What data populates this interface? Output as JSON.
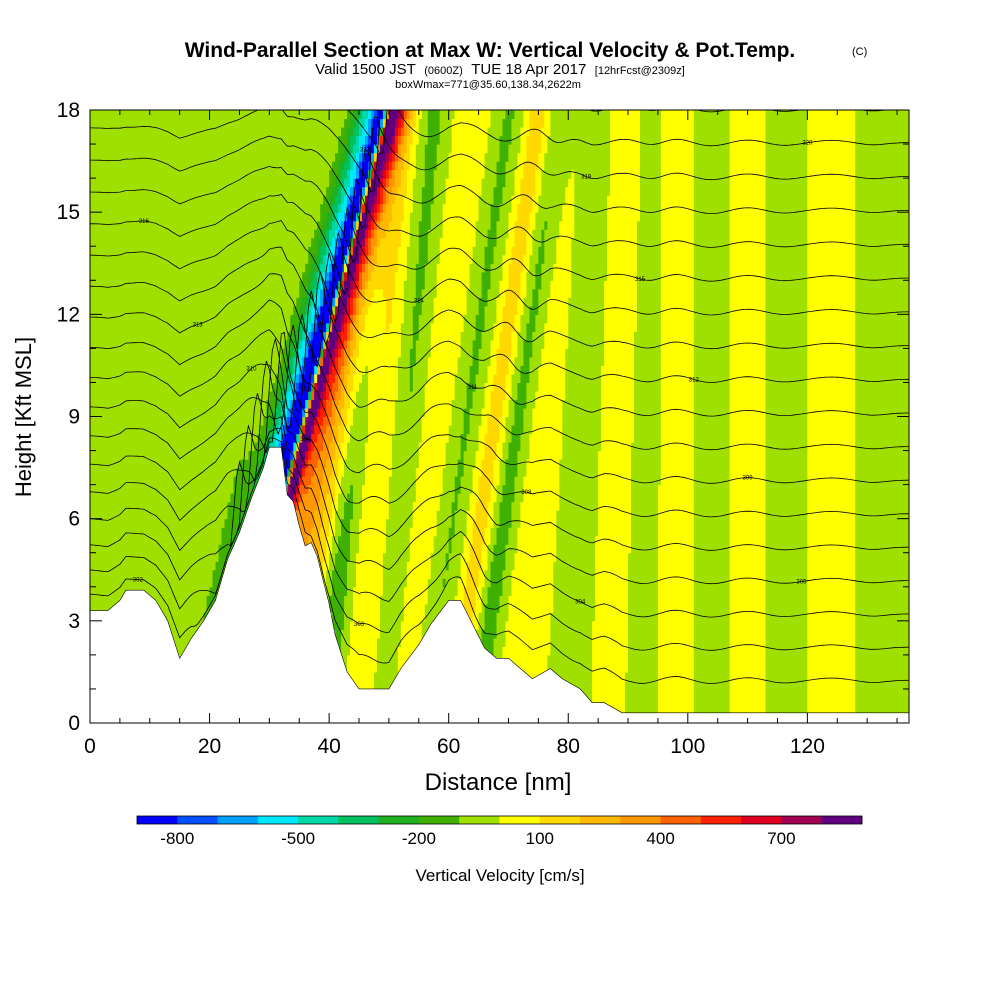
{
  "header": {
    "title": "Wind-Parallel Section at Max W: Vertical Velocity & Pot.Temp.",
    "copyright": "(C)",
    "valid_prefix": "Valid 1500 JST",
    "valid_utc": "(0600Z)",
    "valid_date": "TUE 18 Apr 2017",
    "forecast": "[12hrFcst@2309z]",
    "box_info": "boxWmax=771@35.60,138.34,2622m"
  },
  "chart_data": {
    "type": "heatmap",
    "xlabel": "Distance [nm]",
    "ylabel": "Height [Kft MSL]",
    "xlim": [
      0,
      137
    ],
    "ylim": [
      0,
      18
    ],
    "x_ticks": [
      0,
      20,
      40,
      60,
      80,
      100,
      120
    ],
    "y_ticks": [
      0,
      3,
      6,
      9,
      12,
      15,
      18
    ],
    "colorbar": {
      "label": "Vertical Velocity [cm/s]",
      "tick_labels": [
        "-800",
        "-500",
        "-200",
        "100",
        "400",
        "700"
      ],
      "tick_values": [
        -800,
        -500,
        -200,
        100,
        400,
        700
      ],
      "range": [
        -900,
        900
      ],
      "step": 100,
      "colors": [
        "#0000ff",
        "#0050ff",
        "#00a0ff",
        "#00e8ff",
        "#00d8a8",
        "#00c060",
        "#20b020",
        "#40b000",
        "#a0e000",
        "#ffff00",
        "#ffd800",
        "#ffb800",
        "#ff9800",
        "#ff6000",
        "#ff2000",
        "#e00020",
        "#a00050",
        "#600080"
      ]
    },
    "terrain": [
      [
        0,
        3.3
      ],
      [
        3,
        3.3
      ],
      [
        5,
        3.6
      ],
      [
        6,
        3.9
      ],
      [
        9,
        3.9
      ],
      [
        11,
        3.6
      ],
      [
        13,
        3.0
      ],
      [
        15,
        1.9
      ],
      [
        17,
        2.5
      ],
      [
        19,
        3.0
      ],
      [
        21,
        3.6
      ],
      [
        23,
        4.8
      ],
      [
        25,
        5.6
      ],
      [
        27,
        6.6
      ],
      [
        29,
        7.5
      ],
      [
        30,
        8.1
      ],
      [
        32,
        8.1
      ],
      [
        33,
        6.7
      ],
      [
        34,
        6.5
      ],
      [
        35,
        5.8
      ],
      [
        36,
        5.2
      ],
      [
        37,
        5.3
      ],
      [
        38,
        4.9
      ],
      [
        39,
        4.2
      ],
      [
        40,
        3.5
      ],
      [
        41,
        2.6
      ],
      [
        43,
        1.5
      ],
      [
        45,
        1.0
      ],
      [
        50,
        1.0
      ],
      [
        52,
        1.6
      ],
      [
        55,
        2.3
      ],
      [
        57,
        2.9
      ],
      [
        60,
        3.6
      ],
      [
        62,
        3.6
      ],
      [
        64,
        2.9
      ],
      [
        66,
        2.2
      ],
      [
        68,
        1.9
      ],
      [
        70,
        1.9
      ],
      [
        72,
        1.6
      ],
      [
        74,
        1.3
      ],
      [
        77,
        1.6
      ],
      [
        79,
        1.3
      ],
      [
        82,
        1.0
      ],
      [
        84,
        0.6
      ],
      [
        86,
        0.6
      ],
      [
        89,
        0.3
      ],
      [
        95,
        0.3
      ],
      [
        100,
        0.3
      ],
      [
        110,
        0.3
      ],
      [
        120,
        0.3
      ],
      [
        125,
        0.3
      ],
      [
        130,
        0.3
      ],
      [
        137,
        0.3
      ]
    ],
    "w_features": [
      {
        "x": 35.0,
        "width": 1.2,
        "tilt": 1.6,
        "w": -850
      },
      {
        "x": 36.8,
        "width": 0.9,
        "tilt": 1.5,
        "w": 780
      },
      {
        "x": 37.4,
        "width": 2.0,
        "tilt": 1.5,
        "w": 450
      },
      {
        "x": 33.8,
        "width": 2.3,
        "tilt": 1.6,
        "w": -450
      },
      {
        "x": 32.0,
        "width": 2.8,
        "tilt": 1.5,
        "w": -220
      },
      {
        "x": 39.8,
        "width": 2.2,
        "tilt": 1.2,
        "w": 280
      },
      {
        "x": 42.6,
        "width": 2.6,
        "tilt": 1.0,
        "w": 220
      },
      {
        "x": 44.0,
        "width": 3.0,
        "tilt": 0.6,
        "w": -180
      },
      {
        "x": 49.0,
        "width": 3.0,
        "tilt": 0.4,
        "w": 130
      },
      {
        "x": 53.0,
        "width": 3.0,
        "tilt": 0.5,
        "w": -130
      },
      {
        "x": 58.0,
        "width": 3.5,
        "tilt": 0.7,
        "w": 90
      },
      {
        "x": 63.0,
        "width": 3.0,
        "tilt": 0.8,
        "w": -120
      },
      {
        "x": 68.0,
        "width": 2.5,
        "tilt": 0.8,
        "w": 170
      },
      {
        "x": 71.5,
        "width": 2.5,
        "tilt": 0.8,
        "w": -170
      },
      {
        "x": 75.0,
        "width": 3.5,
        "tilt": 0.5,
        "w": 60
      },
      {
        "x": 83.0,
        "width": 3.0,
        "tilt": 0.2,
        "w": -80
      },
      {
        "x": 88.0,
        "width": 3.5,
        "tilt": 0.2,
        "w": 70
      },
      {
        "x": 93.0,
        "width": 3.0,
        "tilt": 0.1,
        "w": -60
      },
      {
        "x": 98.0,
        "width": 3.0,
        "tilt": 0.0,
        "w": 70
      },
      {
        "x": 104.0,
        "width": 3.5,
        "tilt": 0.0,
        "w": -60
      },
      {
        "x": 110.0,
        "width": 3.5,
        "tilt": 0.0,
        "w": 50
      },
      {
        "x": 116.0,
        "width": 3.5,
        "tilt": 0.0,
        "w": -50
      },
      {
        "x": 124.0,
        "width": 3.5,
        "tilt": 0.0,
        "w": 40
      },
      {
        "x": 131.0,
        "width": 3.0,
        "tilt": 0.0,
        "w": -40
      },
      {
        "x": 5.0,
        "width": 3.0,
        "tilt": 0.2,
        "w": -40
      },
      {
        "x": 12.0,
        "width": 3.5,
        "tilt": 0.4,
        "w": -60
      },
      {
        "x": 19.0,
        "width": 3.5,
        "tilt": 0.6,
        "w": -50
      },
      {
        "x": 26.0,
        "width": 2.5,
        "tilt": 0.9,
        "w": -90
      }
    ],
    "theta_levels": {
      "start": 302,
      "step": 1.1,
      "count": 18
    }
  }
}
